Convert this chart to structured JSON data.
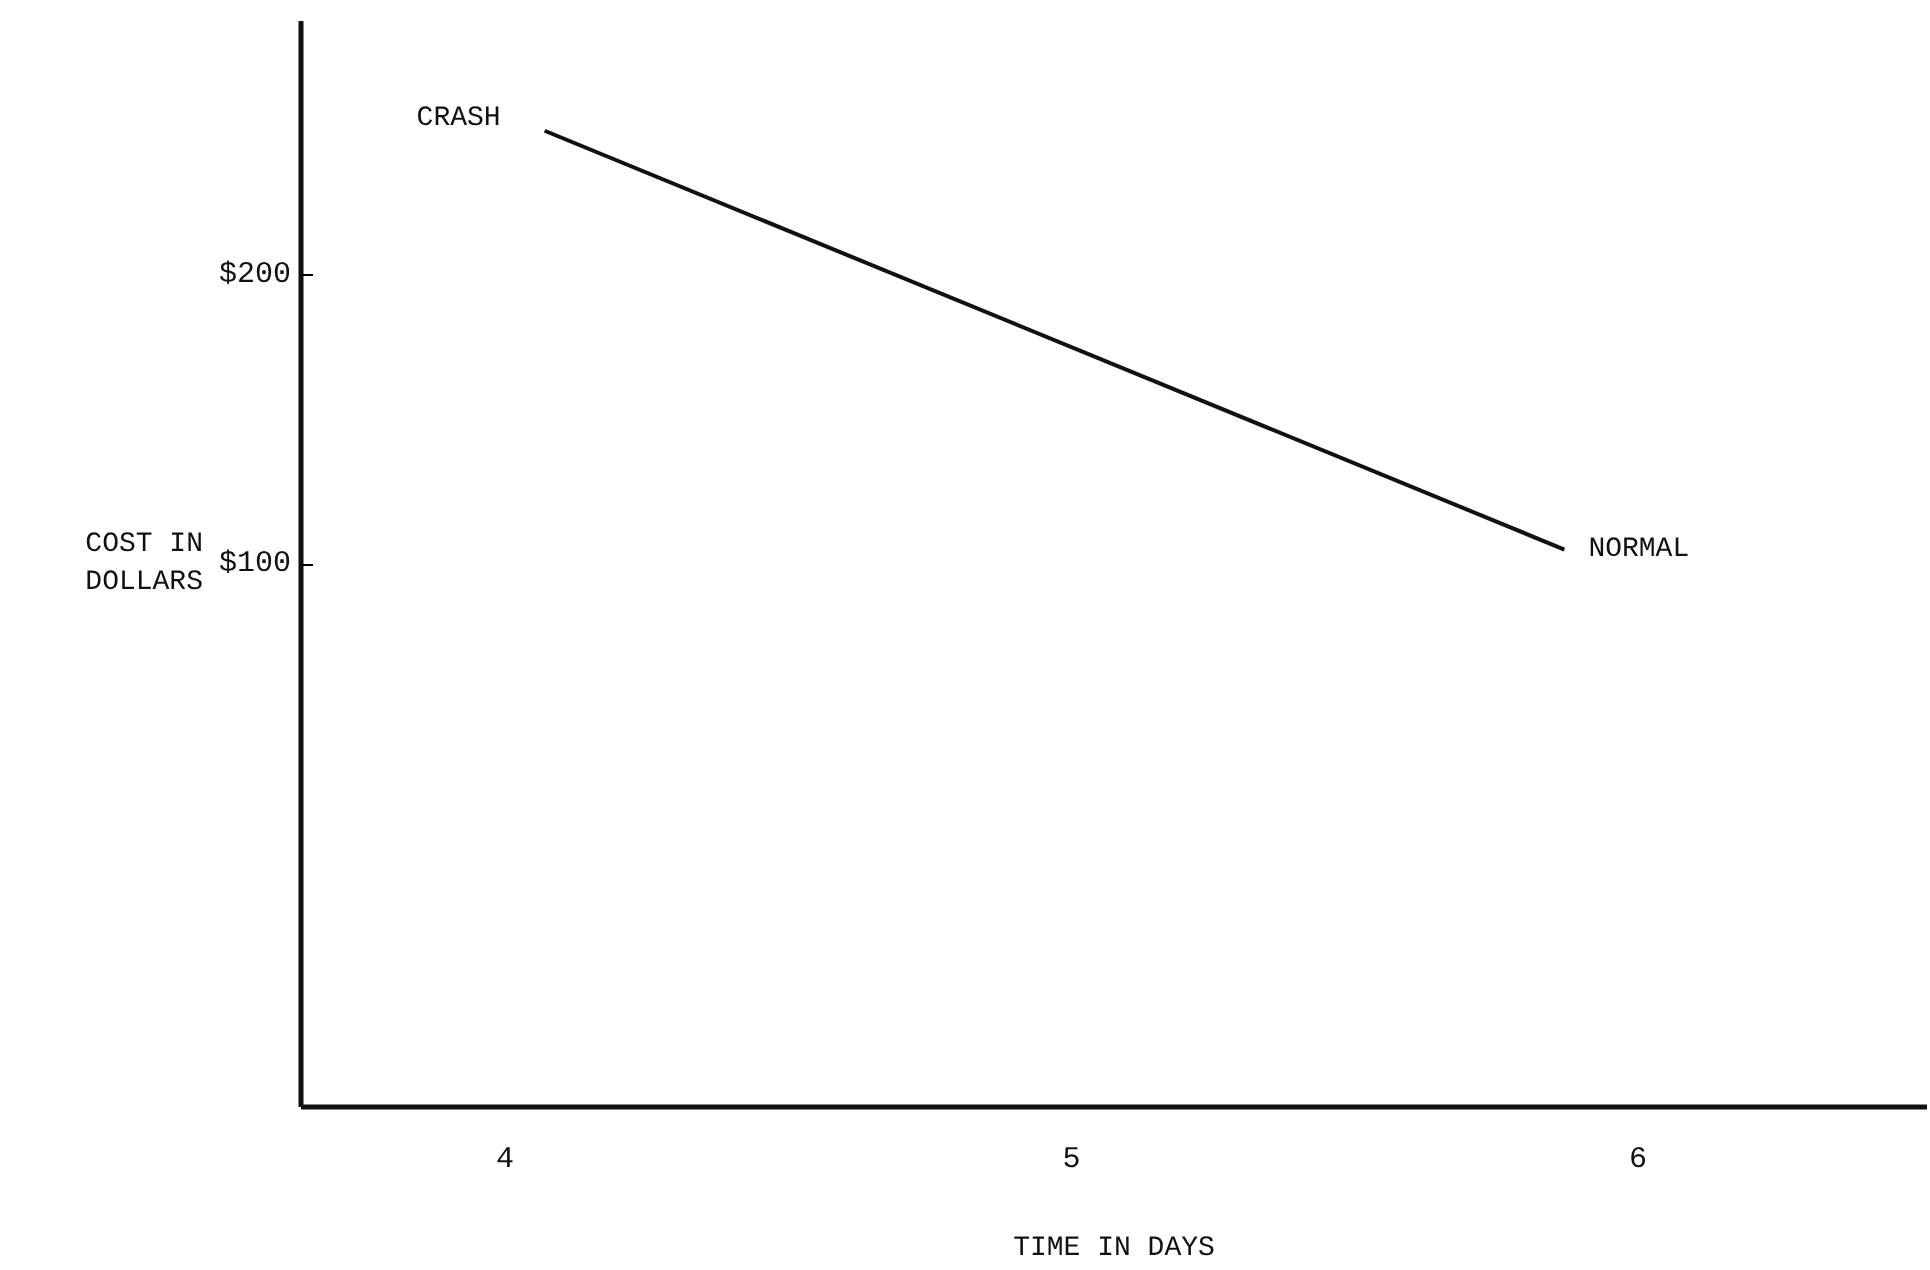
{
  "chart_data": {
    "type": "line",
    "xlabel": "TIME IN DAYS",
    "ylabel": "COST IN DOLLARS",
    "x": [
      4.07,
      5.87
    ],
    "series": [
      {
        "color": "#111111",
        "values": [
          250,
          105
        ]
      }
    ],
    "xlim": [
      3.64,
      6.51
    ],
    "ylim": [
      -88,
      288
    ],
    "xticks": [
      4,
      5,
      6
    ],
    "yticks": [
      {
        "value": 100,
        "label": "$100"
      },
      {
        "value": 200,
        "label": "$200"
      }
    ],
    "annotations": [
      {
        "text": "CRASH",
        "x": 4.07,
        "y": 250
      },
      {
        "text": "NORMAL",
        "x": 5.87,
        "y": 105
      }
    ],
    "grid": false,
    "marker": "none",
    "line_style": "solid"
  }
}
